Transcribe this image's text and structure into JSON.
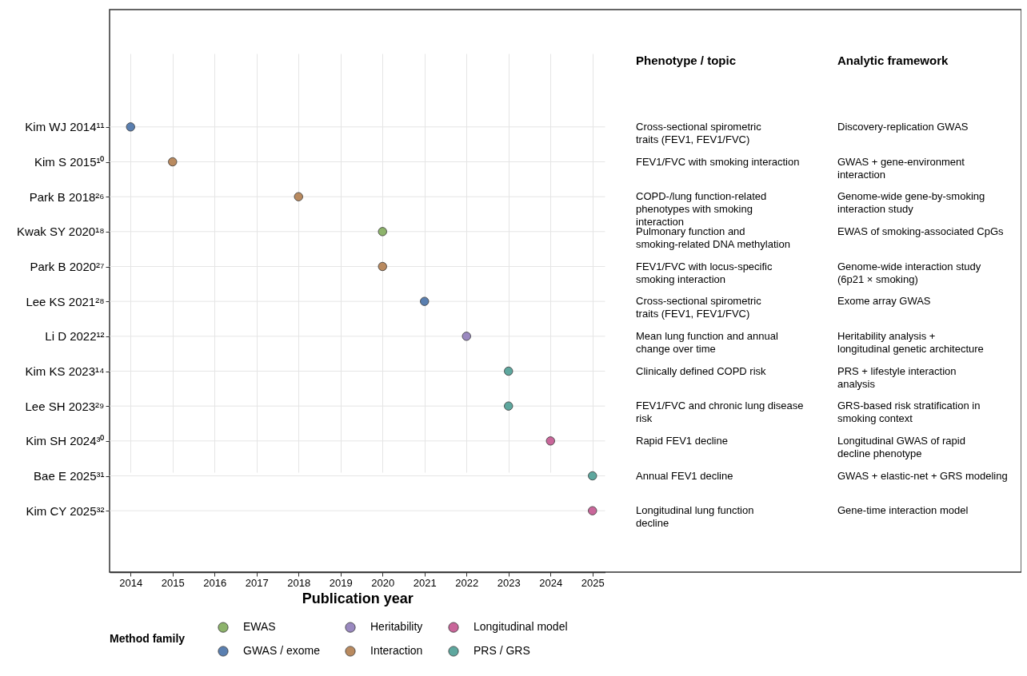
{
  "chart_data": {
    "type": "scatter",
    "orientation": "horizontal",
    "xlabel": "Publication year",
    "legend_title": "Method family",
    "legend": "bottom",
    "grid": true,
    "marker": "circle",
    "categories": [
      "Kim WJ 2014¹¹",
      "Kim S 2015¹⁰",
      "Park B 2018²⁶",
      "Kwak SY 2020¹⁸",
      "Park B 2020²⁷",
      "Lee KS 2021²⁸",
      "Li D 2022¹²",
      "Kim KS 2023¹⁴",
      "Lee SH 2023²⁹",
      "Kim SH 2024³⁰",
      "Bae E 2025³¹",
      "Kim CY 2025³²"
    ],
    "xlim": [
      2013.5,
      2025.3
    ],
    "xticks": [
      2014,
      2015,
      2016,
      2017,
      2018,
      2019,
      2020,
      2021,
      2022,
      2023,
      2024,
      2025
    ],
    "series": [
      {
        "name": "EWAS",
        "color": "#8db36b",
        "values": [
          null,
          null,
          null,
          2020,
          null,
          null,
          null,
          null,
          null,
          null,
          null,
          null
        ]
      },
      {
        "name": "Heritability",
        "color": "#9a89c0",
        "values": [
          null,
          null,
          null,
          null,
          null,
          null,
          2022,
          null,
          null,
          null,
          null,
          null
        ]
      },
      {
        "name": "Longitudinal model",
        "color": "#c9669a",
        "values": [
          null,
          null,
          null,
          null,
          null,
          null,
          null,
          null,
          null,
          2024,
          null,
          2025
        ]
      },
      {
        "name": "GWAS / exome",
        "color": "#5a7fb0",
        "values": [
          2014,
          null,
          null,
          null,
          null,
          2021,
          null,
          null,
          null,
          null,
          null,
          null
        ]
      },
      {
        "name": "Interaction",
        "color": "#b98a5f",
        "values": [
          null,
          2015,
          2018,
          null,
          2020,
          null,
          null,
          null,
          null,
          null,
          null,
          null
        ]
      },
      {
        "name": "PRS / GRS",
        "color": "#5ea79e",
        "values": [
          null,
          null,
          null,
          null,
          null,
          null,
          null,
          2023,
          2023,
          null,
          2025,
          null
        ]
      }
    ],
    "annotations": [
      "Phenotype / topic",
      "Analytic framework",
      "Cross-sectional spirometric traits (FEV1, FEV1/FVC)",
      "Discovery-replication GWAS",
      "FEV1/FVC with smoking interaction",
      "GWAS + gene-environment interaction",
      "COPD-/lung function-related phenotypes with smoking interaction",
      "Genome-wide gene-by-smoking interaction study",
      "Pulmonary function and smoking-related DNA methylation",
      "EWAS of smoking-associated CpGs",
      "FEV1/FVC with locus-specific smoking interaction",
      "Genome-wide interaction study (6p21 × smoking)",
      "Cross-sectional spirometric traits (FEV1, FEV1/FVC)",
      "Exome array GWAS",
      "Mean lung function and annual change over time",
      "Heritability analysis + longitudinal genetic architecture",
      "Clinically defined COPD risk",
      "PRS + lifestyle interaction analysis",
      "FEV1/FVC and chronic lung disease risk",
      "GRS-based risk stratification in smoking context",
      "Rapid FEV1 decline",
      "Longitudinal GWAS of rapid decline phenotype",
      "Annual FEV1 decline",
      "GWAS + elastic-net + GRS modeling",
      "Longitudinal lung function decline",
      "Gene-time interaction model"
    ]
  }
}
